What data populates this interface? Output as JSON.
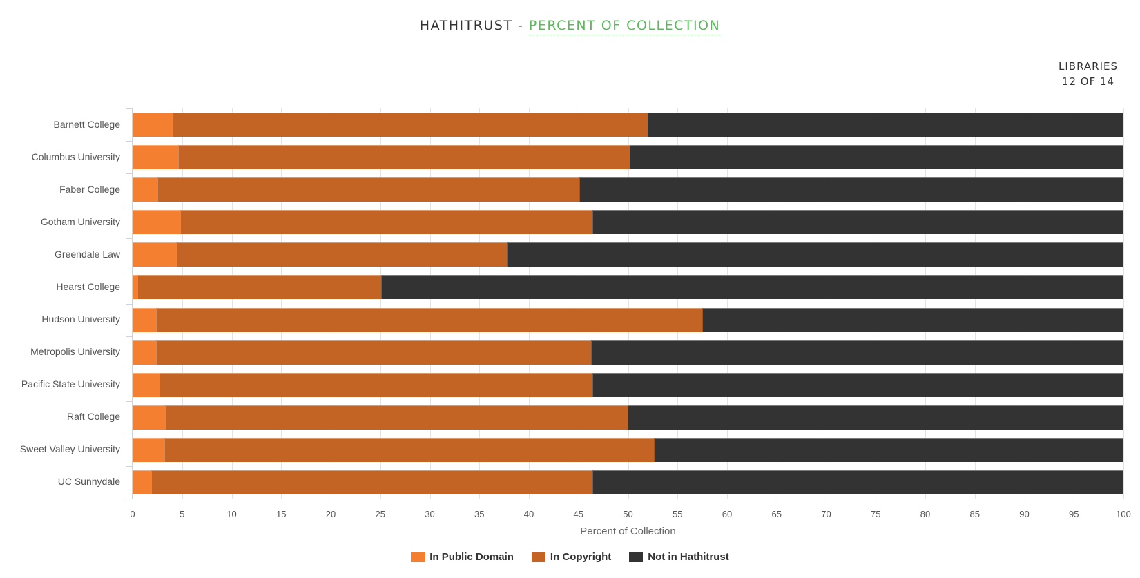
{
  "header": {
    "title_prefix": "HATHITRUST - ",
    "title_link": "PERCENT OF COLLECTION",
    "counter_label": "LIBRARIES",
    "counter_value": "12 OF 14"
  },
  "colors": {
    "public_domain": "#f47f30",
    "copyright": "#c46424",
    "not_in_hathitrust": "#333333",
    "accent": "#5cb85c"
  },
  "chart_data": {
    "type": "bar",
    "orientation": "horizontal",
    "stacked": true,
    "title": "HathiTrust - Percent of Collection",
    "xlabel": "Percent of Collection",
    "ylabel": "",
    "xlim": [
      0,
      100
    ],
    "xticks": [
      0,
      5,
      10,
      15,
      20,
      25,
      30,
      35,
      40,
      45,
      50,
      55,
      60,
      65,
      70,
      75,
      80,
      85,
      90,
      95,
      100
    ],
    "grid": true,
    "legend_position": "bottom",
    "categories": [
      "Barnett College",
      "Columbus University",
      "Faber College",
      "Gotham University",
      "Greendale Law",
      "Hearst College",
      "Hudson University",
      "Metropolis University",
      "Pacific State University",
      "Raft College",
      "Sweet Valley University",
      "UC Sunnydale"
    ],
    "series": [
      {
        "name": "In Public Domain",
        "color": "#f47f30",
        "values": [
          4.0,
          4.6,
          2.5,
          4.8,
          4.4,
          0.5,
          2.4,
          2.4,
          2.7,
          3.3,
          3.2,
          1.9
        ]
      },
      {
        "name": "In Copyright",
        "color": "#c46424",
        "values": [
          48.0,
          45.6,
          42.6,
          41.6,
          33.4,
          24.6,
          55.1,
          43.9,
          43.7,
          46.7,
          49.4,
          44.5
        ]
      },
      {
        "name": "Not in Hathitrust",
        "color": "#333333",
        "values": [
          48.0,
          49.8,
          54.9,
          53.6,
          62.2,
          74.9,
          42.5,
          53.7,
          53.6,
          50.0,
          47.4,
          53.6
        ]
      }
    ]
  }
}
